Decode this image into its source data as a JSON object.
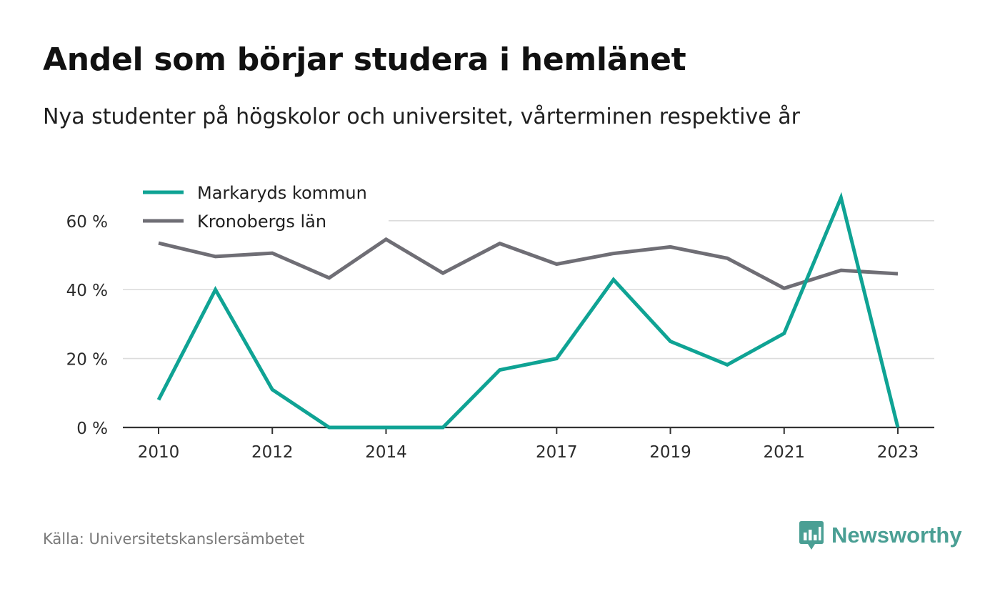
{
  "title": "Andel som börjar studera i hemlänet",
  "subtitle": "Nya studenter på högskolor och universitet, vårterminen respektive år",
  "source": "Källa: Universitetskanslersämbetet",
  "brand": {
    "name": "Newsworthy",
    "color": "#4a9f94",
    "icon": "newsworthy-logo-icon"
  },
  "chart_data": {
    "type": "line",
    "x": [
      2010,
      2011,
      2012,
      2013,
      2014,
      2015,
      2016,
      2017,
      2018,
      2019,
      2020,
      2021,
      2022,
      2023
    ],
    "xticks": [
      2010,
      2012,
      2014,
      2017,
      2019,
      2021,
      2023
    ],
    "xtick_labels": [
      "2010",
      "2012",
      "2014",
      "2017",
      "2019",
      "2021",
      "2023"
    ],
    "yticks": [
      0,
      20,
      40,
      60
    ],
    "ytick_labels": [
      "0 %",
      "20 %",
      "40 %",
      "60 %"
    ],
    "ylim": [
      0,
      70
    ],
    "grid": true,
    "legend_position": "top-left",
    "series": [
      {
        "name": "Markaryds kommun",
        "color": "#0fa394",
        "values": [
          8,
          40,
          11,
          0,
          0,
          0,
          16.7,
          20,
          42.9,
          25,
          18.2,
          27.3,
          66.7,
          0
        ]
      },
      {
        "name": "Kronobergs län",
        "color": "#6f6e75",
        "values": [
          53.5,
          49.6,
          50.6,
          43.4,
          54.6,
          44.8,
          53.4,
          47.4,
          50.5,
          52.4,
          49.1,
          40.4,
          45.6,
          44.6
        ]
      }
    ]
  }
}
